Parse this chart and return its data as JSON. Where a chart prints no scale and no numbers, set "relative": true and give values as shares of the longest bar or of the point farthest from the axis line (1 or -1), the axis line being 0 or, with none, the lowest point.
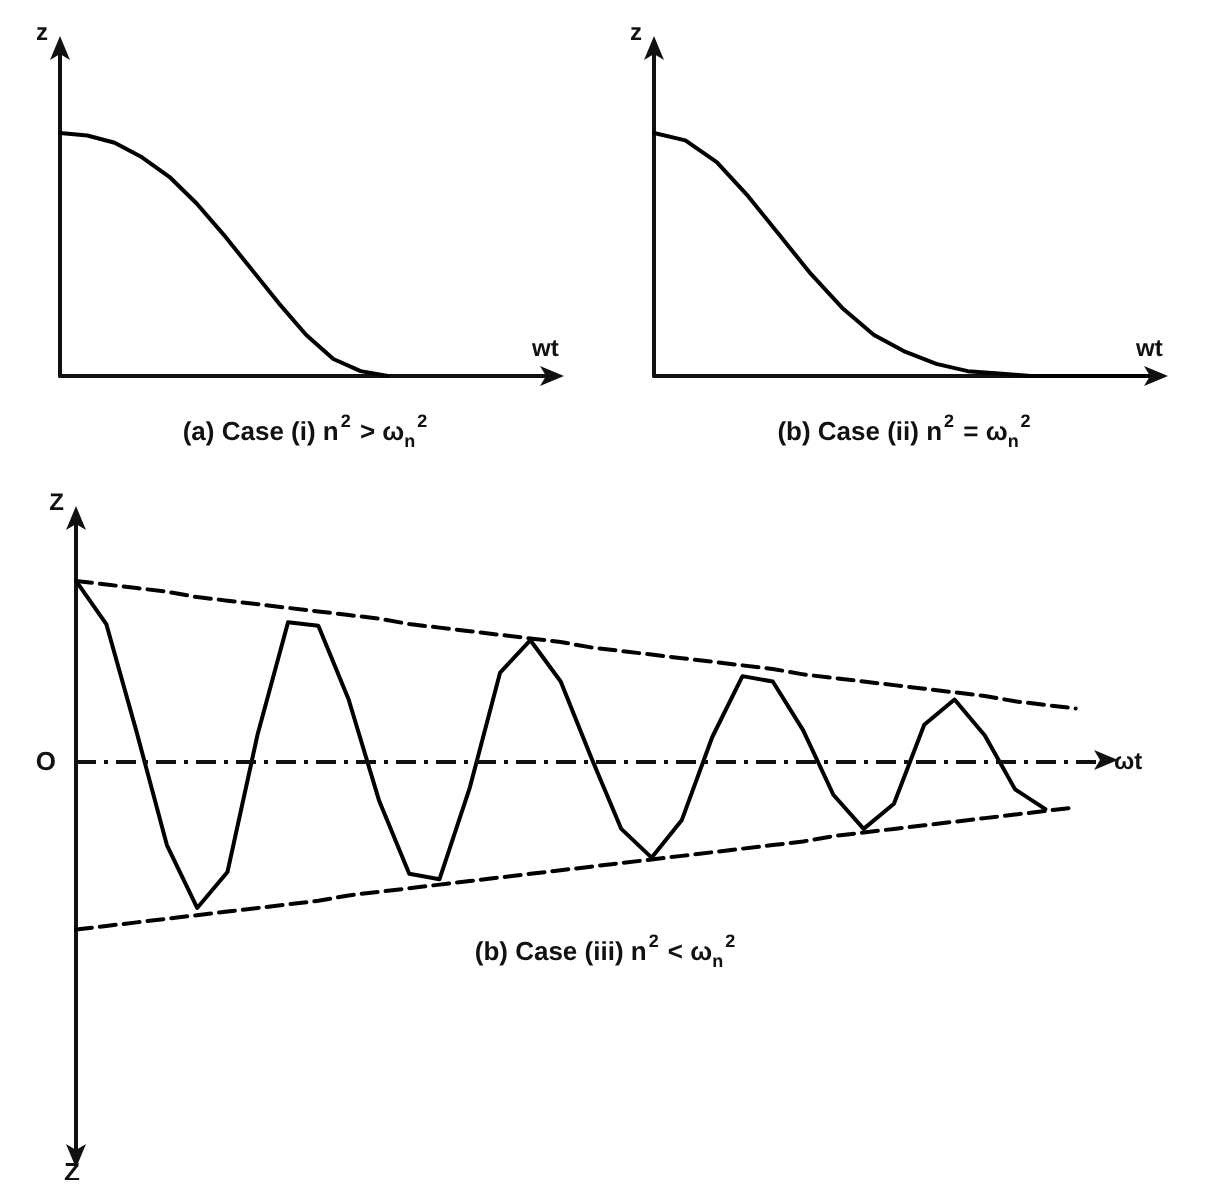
{
  "chart_data": [
    {
      "type": "line",
      "title": "(a) Case (i) n$^{2}$ > ω$_{n}$$^{2}$",
      "xlabel": "wt",
      "ylabel": "z",
      "relative": true,
      "marker": "none",
      "categories": [
        null,
        null,
        null,
        null,
        null,
        null,
        null,
        null,
        null,
        null,
        null,
        null,
        null,
        null,
        null,
        null,
        null,
        null,
        null
      ],
      "series": [
        {
          "color": "#000000",
          "line_style": "solid",
          "values": [
            1,
            0.99,
            0.96,
            0.9,
            0.82,
            0.71,
            0.58,
            0.44,
            0.3,
            0.17,
            0.07,
            0.02,
            0,
            null,
            null,
            null,
            null,
            null,
            null
          ]
        }
      ]
    },
    {
      "type": "line",
      "title": "(b) Case (ii) n$^{2}$ = ω$_{n}$$^{2}$",
      "xlabel": "wt",
      "ylabel": "z",
      "relative": true,
      "marker": "none",
      "categories": [
        null,
        null,
        null,
        null,
        null,
        null,
        null,
        null,
        null,
        null,
        null,
        null,
        null,
        null,
        null,
        null,
        null
      ],
      "series": [
        {
          "color": "#000000",
          "line_style": "solid",
          "values": [
            1,
            0.97,
            0.88,
            0.74,
            0.58,
            0.42,
            0.28,
            0.17,
            0.1,
            0.05,
            0.02,
            0.01,
            0,
            0,
            0,
            0,
            0
          ]
        }
      ]
    },
    {
      "type": "line",
      "title": "(b) Case (iii) n$^{2}$ < ω$_{n}$$^{2}$",
      "xlabel": "ωt",
      "ylabel": "Z",
      "annotations": [
        "O",
        "Z"
      ],
      "ref_lines": [
        {
          "axis": "y",
          "value": 0
        }
      ],
      "relative": true,
      "marker": "none",
      "categories": [
        null,
        null,
        null,
        null,
        null,
        null,
        null,
        null,
        null,
        null,
        null,
        null,
        null,
        null,
        null,
        null,
        null,
        null,
        null,
        null,
        null,
        null,
        null,
        null,
        null,
        null,
        null,
        null,
        null,
        null,
        null,
        null,
        null,
        null,
        null
      ],
      "series": [
        {
          "color": "#000000",
          "line_style": "solid",
          "values": [
            1,
            0.76,
            0.16,
            -0.47,
            -0.82,
            -0.62,
            0.15,
            0.77,
            0.75,
            0.34,
            -0.22,
            -0.63,
            -0.66,
            -0.15,
            0.49,
            0.67,
            0.44,
            0.02,
            -0.38,
            -0.54,
            -0.33,
            0.13,
            0.47,
            0.44,
            0.17,
            -0.19,
            -0.38,
            -0.24,
            0.2,
            0.34,
            0.14,
            -0.16,
            -0.27,
            null,
            null
          ]
        },
        {
          "color": "#000000",
          "line_style": "dashed",
          "values": [
            1,
            0.98,
            0.96,
            0.94,
            0.91,
            0.89,
            0.87,
            0.85,
            0.83,
            0.81,
            0.79,
            0.76,
            0.74,
            0.72,
            0.7,
            0.68,
            0.66,
            0.63,
            0.61,
            0.59,
            0.57,
            0.55,
            0.53,
            0.51,
            0.48,
            0.46,
            0.44,
            0.42,
            0.4,
            0.38,
            0.36,
            0.33,
            0.31,
            0.29,
            null
          ]
        },
        {
          "color": "#000000",
          "line_style": "dashed",
          "values": [
            -0.94,
            -0.92,
            -0.9,
            -0.88,
            -0.86,
            -0.84,
            -0.82,
            -0.8,
            -0.78,
            -0.75,
            -0.73,
            -0.71,
            -0.69,
            -0.67,
            -0.65,
            -0.63,
            -0.61,
            -0.59,
            -0.57,
            -0.55,
            -0.53,
            -0.51,
            -0.49,
            -0.47,
            -0.45,
            -0.42,
            -0.4,
            -0.38,
            -0.36,
            -0.34,
            -0.32,
            -0.3,
            -0.28,
            -0.26,
            null
          ]
        }
      ]
    }
  ]
}
